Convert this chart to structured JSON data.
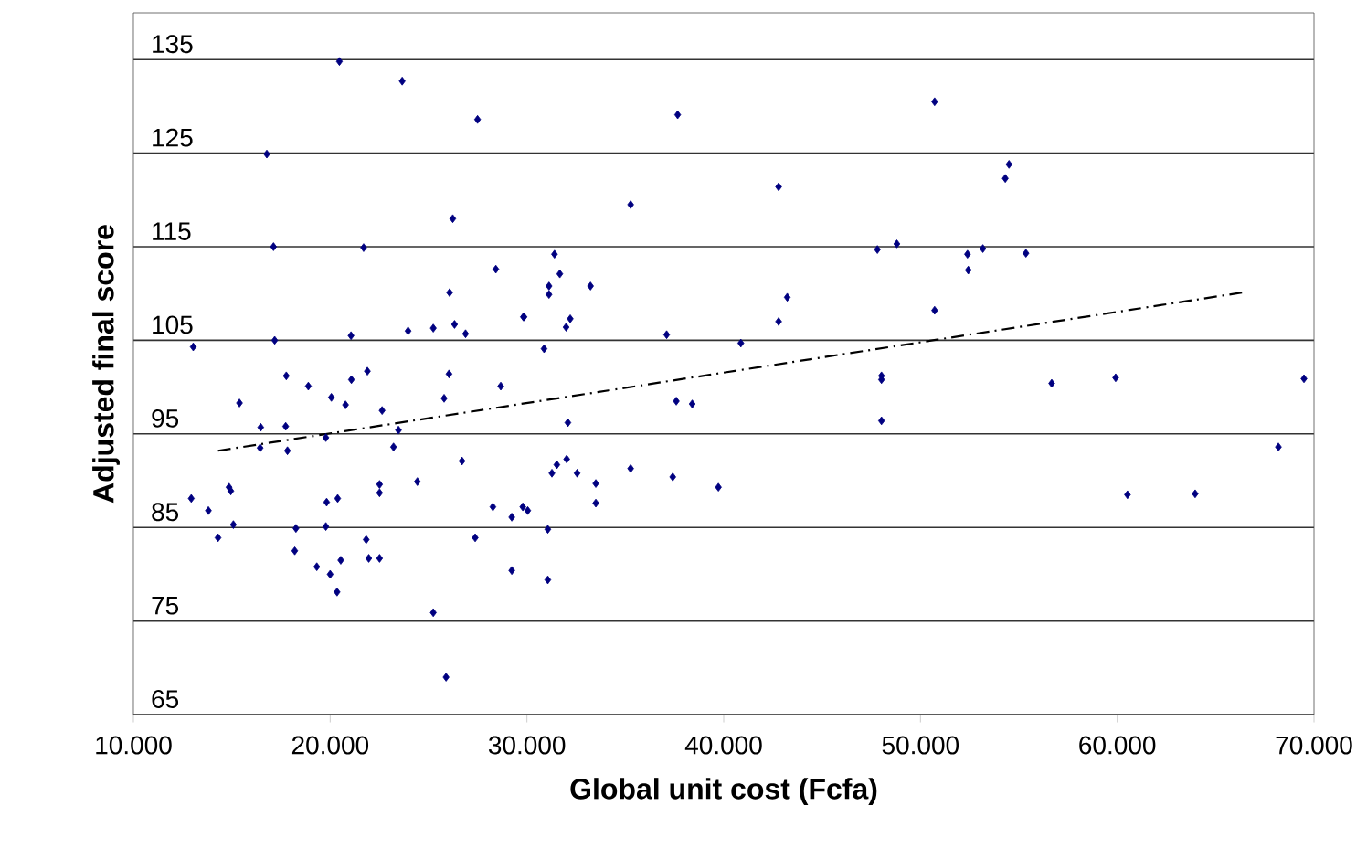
{
  "chart_data": {
    "type": "scatter",
    "xlabel": "Global unit cost (Fcfa)",
    "ylabel": "Adjusted final score",
    "xlim": [
      10000,
      70000
    ],
    "ylim": [
      65,
      140
    ],
    "xticks": [
      {
        "value": 10000,
        "label": "10.000"
      },
      {
        "value": 20000,
        "label": "20.000"
      },
      {
        "value": 30000,
        "label": "30.000"
      },
      {
        "value": 40000,
        "label": "40.000"
      },
      {
        "value": 50000,
        "label": "50.000"
      },
      {
        "value": 60000,
        "label": "60.000"
      },
      {
        "value": 70000,
        "label": "70.000"
      }
    ],
    "yticks": [
      65,
      75,
      85,
      95,
      105,
      115,
      125,
      135
    ],
    "grid": "y",
    "series": [
      {
        "marker": "diamond",
        "color": "#000080",
        "x": [
          20470,
          23660,
          27490,
          16780,
          26230,
          17120,
          21700,
          28420,
          26070,
          29850,
          23960,
          25240,
          26320,
          26880,
          21060,
          17180,
          13040,
          37660,
          35270,
          42790,
          31400,
          31670,
          31120,
          31120,
          33230,
          29820,
          32200,
          31990,
          37100,
          40870,
          30870,
          42790,
          43230,
          47810,
          48800,
          50720,
          54500,
          54310,
          53170,
          50720,
          52390,
          52430,
          55360,
          48020,
          48020,
          48020,
          37590,
          38400,
          32080,
          31270,
          31520,
          32020,
          32550,
          33500,
          33500,
          35270,
          37410,
          39730,
          29790,
          30040,
          29230,
          31060,
          29230,
          31060,
          12940,
          13810,
          14300,
          14860,
          14950,
          15080,
          15390,
          16470,
          16440,
          17770,
          17740,
          17830,
          18260,
          18200,
          18890,
          19320,
          19780,
          19820,
          19780,
          20000,
          20060,
          20380,
          20350,
          20540,
          20780,
          21080,
          21890,
          21830,
          21960,
          22510,
          22640,
          22510,
          22510,
          23220,
          23470,
          24430,
          25240,
          25790,
          26040,
          25890,
          26700,
          27370,
          28270,
          28670,
          56670,
          59920,
          69490,
          68190,
          60520,
          63960
        ],
        "values": [
          134.8,
          132.7,
          128.6,
          124.9,
          118.0,
          115.0,
          114.9,
          112.6,
          110.1,
          107.5,
          106.0,
          106.3,
          106.7,
          105.7,
          105.5,
          105.0,
          104.3,
          129.1,
          119.5,
          121.4,
          114.2,
          112.1,
          110.8,
          109.9,
          110.8,
          107.5,
          107.3,
          106.4,
          105.6,
          104.7,
          104.1,
          107.0,
          109.6,
          114.7,
          115.3,
          130.5,
          123.8,
          122.3,
          114.8,
          108.2,
          114.2,
          112.5,
          114.3,
          101.2,
          100.8,
          96.4,
          98.5,
          98.2,
          96.2,
          90.8,
          91.7,
          92.3,
          90.8,
          89.7,
          87.6,
          91.3,
          90.4,
          89.3,
          87.2,
          86.8,
          86.1,
          84.8,
          80.4,
          79.4,
          88.1,
          86.8,
          83.9,
          89.3,
          88.9,
          85.3,
          98.3,
          95.7,
          93.5,
          101.2,
          95.8,
          93.2,
          84.9,
          82.5,
          100.1,
          80.8,
          94.6,
          87.7,
          85.1,
          80.0,
          98.9,
          88.1,
          78.1,
          81.5,
          98.1,
          100.8,
          101.7,
          83.7,
          81.7,
          81.7,
          97.5,
          89.6,
          88.7,
          93.6,
          95.4,
          89.9,
          75.9,
          98.8,
          101.4,
          69.0,
          92.1,
          83.9,
          87.2,
          100.1,
          100.4,
          101.0,
          100.9,
          93.6,
          88.5,
          88.6
        ]
      },
      {
        "type": "line",
        "color": "#000000",
        "line_style": "dashdot",
        "x": [
          14300,
          66340
        ],
        "values": [
          93.2,
          110.1
        ]
      }
    ]
  }
}
